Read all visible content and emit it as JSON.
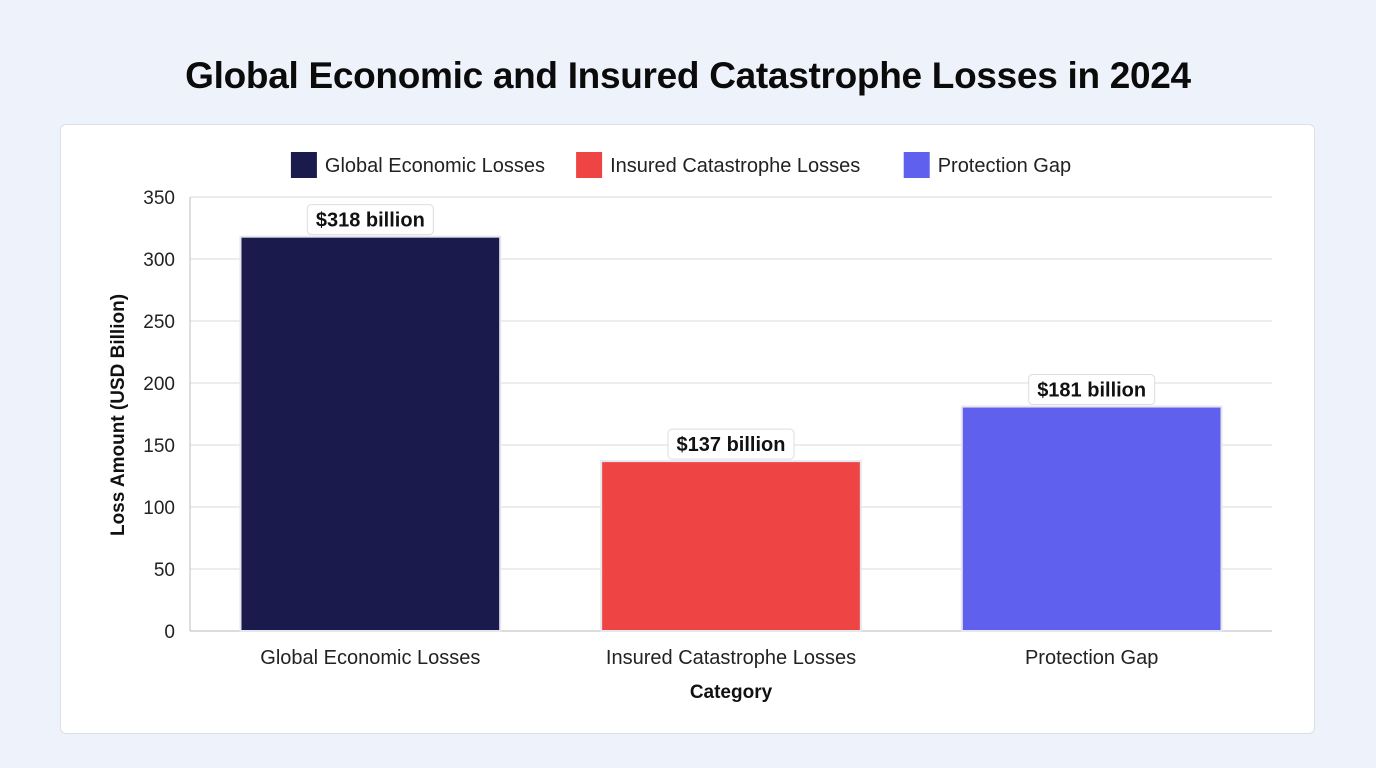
{
  "title": "Global Economic and Insured Catastrophe Losses in 2024",
  "chart_data": {
    "type": "bar",
    "title": "Global Economic and Insured Catastrophe Losses in 2024",
    "xlabel": "Category",
    "ylabel": "Loss Amount (USD Billion)",
    "categories": [
      "Global Economic Losses",
      "Insured Catastrophe Losses",
      "Protection Gap"
    ],
    "values": [
      318,
      137,
      181
    ],
    "data_labels": [
      "$318 billion",
      "$137 billion",
      "$181 billion"
    ],
    "colors": [
      "#1a1a4d",
      "#ef4444",
      "#6060ee"
    ],
    "legend": [
      {
        "label": "Global Economic Losses",
        "color": "#1a1a4d"
      },
      {
        "label": "Insured Catastrophe Losses",
        "color": "#ef4444"
      },
      {
        "label": "Protection Gap",
        "color": "#6060ee"
      }
    ],
    "legend_position": "top-center",
    "ylim": [
      0,
      350
    ],
    "yticks": [
      0,
      50,
      100,
      150,
      200,
      250,
      300,
      350
    ],
    "grid": true
  }
}
